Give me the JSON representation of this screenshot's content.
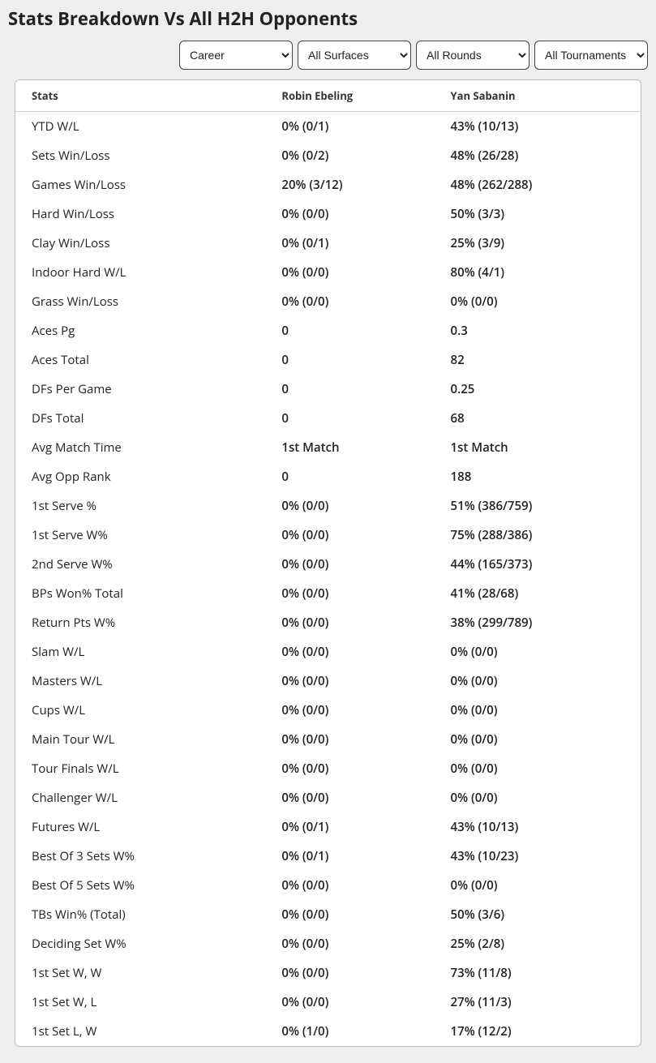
{
  "title": "Stats Breakdown Vs All H2H Opponents",
  "filters": {
    "period": {
      "selected": "Career",
      "options": [
        "Career"
      ]
    },
    "surface": {
      "selected": "All Surfaces",
      "options": [
        "All Surfaces"
      ]
    },
    "round": {
      "selected": "All Rounds",
      "options": [
        "All Rounds"
      ]
    },
    "tourn": {
      "selected": "All Tournaments",
      "options": [
        "All Tournaments"
      ]
    }
  },
  "columns": {
    "stat": "Stats",
    "p1": "Robin Ebeling",
    "p2": "Yan Sabanin"
  },
  "rows": [
    {
      "stat": "YTD W/L",
      "p1": "0% (0/1)",
      "p2": "43% (10/13)"
    },
    {
      "stat": "Sets Win/Loss",
      "p1": "0% (0/2)",
      "p2": "48% (26/28)"
    },
    {
      "stat": "Games Win/Loss",
      "p1": "20% (3/12)",
      "p2": "48% (262/288)"
    },
    {
      "stat": "Hard Win/Loss",
      "p1": "0% (0/0)",
      "p2": "50% (3/3)"
    },
    {
      "stat": "Clay Win/Loss",
      "p1": "0% (0/1)",
      "p2": "25% (3/9)"
    },
    {
      "stat": "Indoor Hard W/L",
      "p1": "0% (0/0)",
      "p2": "80% (4/1)"
    },
    {
      "stat": "Grass Win/Loss",
      "p1": "0% (0/0)",
      "p2": "0% (0/0)"
    },
    {
      "stat": "Aces Pg",
      "p1": "0",
      "p2": "0.3"
    },
    {
      "stat": "Aces Total",
      "p1": "0",
      "p2": "82"
    },
    {
      "stat": "DFs Per Game",
      "p1": "0",
      "p2": "0.25"
    },
    {
      "stat": "DFs Total",
      "p1": "0",
      "p2": "68"
    },
    {
      "stat": "Avg Match Time",
      "p1": "1st Match",
      "p2": "1st Match"
    },
    {
      "stat": "Avg Opp Rank",
      "p1": "0",
      "p2": "188"
    },
    {
      "stat": "1st Serve %",
      "p1": "0% (0/0)",
      "p2": "51% (386/759)"
    },
    {
      "stat": "1st Serve W%",
      "p1": "0% (0/0)",
      "p2": "75% (288/386)"
    },
    {
      "stat": "2nd Serve W%",
      "p1": "0% (0/0)",
      "p2": "44% (165/373)"
    },
    {
      "stat": "BPs Won% Total",
      "p1": "0% (0/0)",
      "p2": "41% (28/68)"
    },
    {
      "stat": "Return Pts W%",
      "p1": "0% (0/0)",
      "p2": "38% (299/789)"
    },
    {
      "stat": "Slam W/L",
      "p1": "0% (0/0)",
      "p2": "0% (0/0)"
    },
    {
      "stat": "Masters W/L",
      "p1": "0% (0/0)",
      "p2": "0% (0/0)"
    },
    {
      "stat": "Cups W/L",
      "p1": "0% (0/0)",
      "p2": "0% (0/0)"
    },
    {
      "stat": "Main Tour W/L",
      "p1": "0% (0/0)",
      "p2": "0% (0/0)"
    },
    {
      "stat": "Tour Finals W/L",
      "p1": "0% (0/0)",
      "p2": "0% (0/0)"
    },
    {
      "stat": "Challenger W/L",
      "p1": "0% (0/0)",
      "p2": "0% (0/0)"
    },
    {
      "stat": "Futures W/L",
      "p1": "0% (0/1)",
      "p2": "43% (10/13)"
    },
    {
      "stat": "Best Of 3 Sets W%",
      "p1": "0% (0/1)",
      "p2": "43% (10/23)"
    },
    {
      "stat": "Best Of 5 Sets W%",
      "p1": "0% (0/0)",
      "p2": "0% (0/0)"
    },
    {
      "stat": "TBs Win% (Total)",
      "p1": "0% (0/0)",
      "p2": "50% (3/6)"
    },
    {
      "stat": "Deciding Set W%",
      "p1": "0% (0/0)",
      "p2": "25% (2/8)"
    },
    {
      "stat": "1st Set W, W",
      "p1": "0% (0/0)",
      "p2": "73% (11/8)"
    },
    {
      "stat": "1st Set W, L",
      "p1": "0% (0/0)",
      "p2": "27% (11/3)"
    },
    {
      "stat": "1st Set L, W",
      "p1": "0% (1/0)",
      "p2": "17% (12/2)"
    }
  ]
}
